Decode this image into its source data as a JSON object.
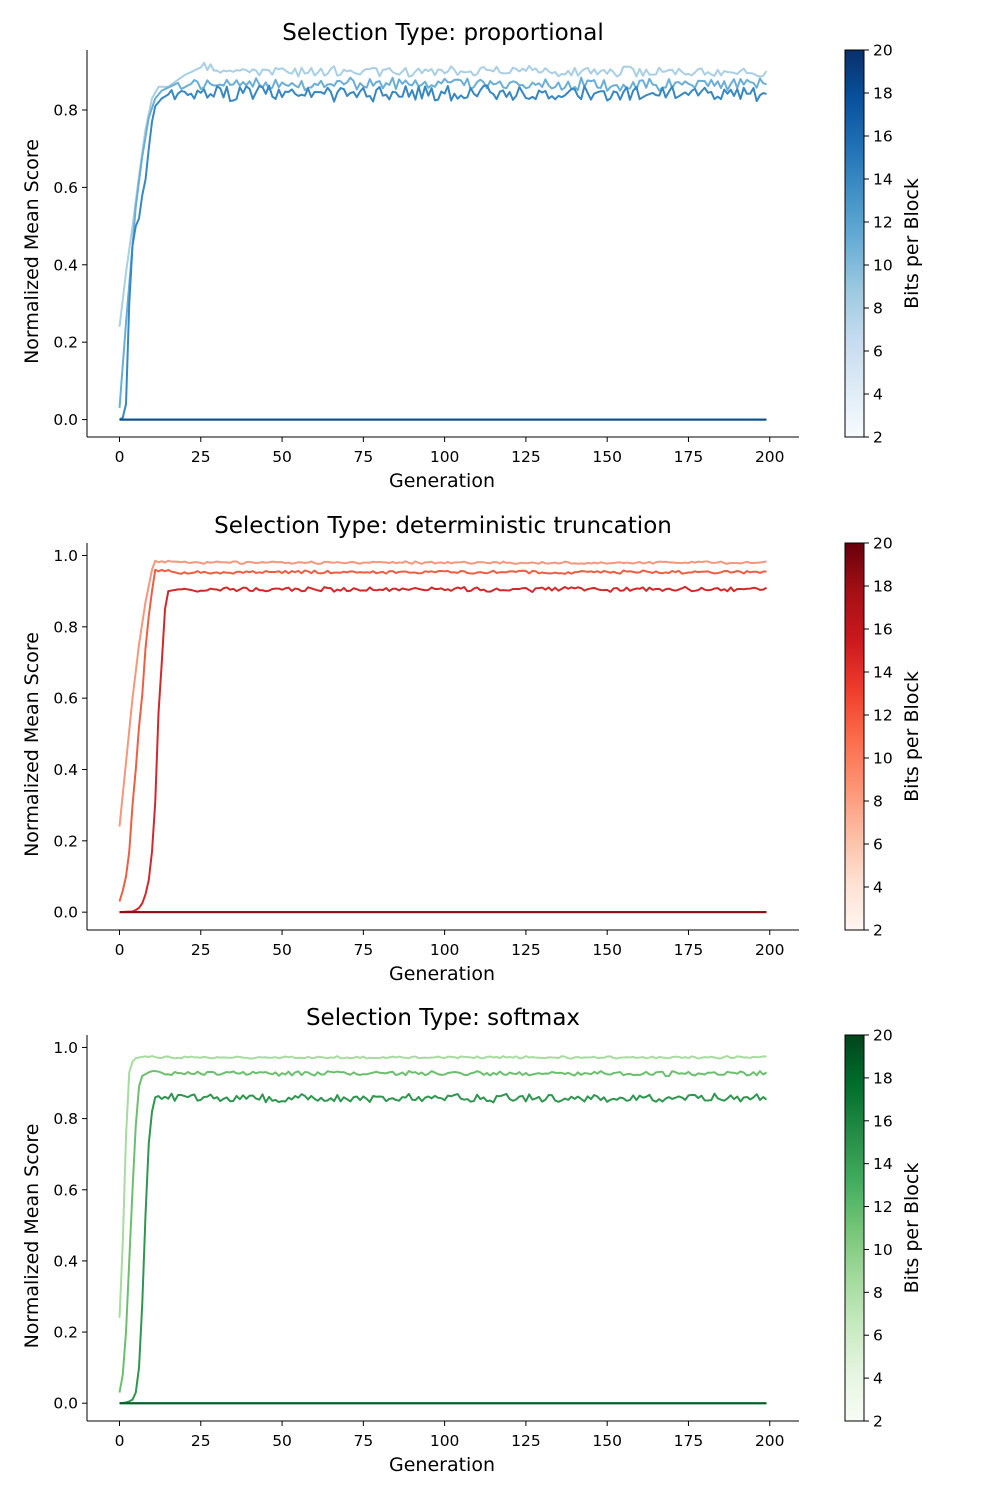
{
  "chart_data": [
    {
      "type": "line",
      "title": "Selection Type: proportional",
      "xlabel": "Generation",
      "ylabel": "Normalized Mean Score",
      "xlim": [
        -10,
        209
      ],
      "ylim": [
        -0.045,
        0.955
      ],
      "xticks": [
        0,
        25,
        50,
        75,
        100,
        125,
        150,
        175,
        200
      ],
      "yticks": [
        0.0,
        0.2,
        0.4,
        0.6,
        0.8
      ],
      "ytick_labels": [
        "0.0",
        "0.2",
        "0.4",
        "0.6",
        "0.8"
      ],
      "colorbar": {
        "label": "Bits per Block",
        "range": [
          2,
          20
        ],
        "ticks": [
          2,
          4,
          6,
          8,
          10,
          12,
          14,
          16,
          18,
          20
        ],
        "cmap": [
          "#f7fbff",
          "#deebf7",
          "#c6dbef",
          "#9ecae1",
          "#6baed6",
          "#4292c6",
          "#2171b5",
          "#08519c",
          "#08306b"
        ]
      },
      "series": [
        {
          "bits": 8,
          "color": "#a9cfe5",
          "start": 0.24,
          "rise": [
            [
              0,
              0.24
            ],
            [
              2,
              0.38
            ],
            [
              4,
              0.5
            ],
            [
              6,
              0.63
            ],
            [
              8,
              0.75
            ],
            [
              10,
              0.83
            ],
            [
              12,
              0.86
            ],
            [
              15,
              0.86
            ],
            [
              20,
              0.89
            ],
            [
              25,
              0.91
            ]
          ],
          "plateau": 0.9,
          "noise": 0.012
        },
        {
          "bits": 10,
          "color": "#6aaed6",
          "start": 0.03,
          "rise": [
            [
              0,
              0.03
            ],
            [
              2,
              0.25
            ],
            [
              3,
              0.35
            ],
            [
              5,
              0.55
            ],
            [
              7,
              0.68
            ],
            [
              9,
              0.78
            ],
            [
              11,
              0.83
            ],
            [
              13,
              0.85
            ],
            [
              18,
              0.87
            ]
          ],
          "plateau": 0.866,
          "noise": 0.014
        },
        {
          "bits": 12,
          "color": "#3787c0",
          "start": 0.0,
          "rise": [
            [
              0,
              0.0
            ],
            [
              1,
              0.005
            ],
            [
              2,
              0.04
            ],
            [
              3,
              0.3
            ],
            [
              4,
              0.45
            ],
            [
              5,
              0.5
            ],
            [
              6,
              0.52
            ],
            [
              7,
              0.58
            ],
            [
              8,
              0.62
            ],
            [
              9,
              0.7
            ],
            [
              10,
              0.77
            ],
            [
              11,
              0.81
            ],
            [
              13,
              0.83
            ],
            [
              15,
              0.84
            ]
          ],
          "plateau": 0.842,
          "noise": 0.018
        },
        {
          "bits": 14,
          "color": "#1562a9",
          "start": 0.0,
          "rise": [
            [
              0,
              0.0
            ]
          ],
          "plateau": 0.0,
          "noise": 0.0
        },
        {
          "bits": 16,
          "color": "#0d4e8f",
          "start": 0.0,
          "rise": [
            [
              0,
              0.0
            ]
          ],
          "plateau": 0.0,
          "noise": 0.0
        }
      ]
    },
    {
      "type": "line",
      "title": "Selection Type: deterministic truncation",
      "xlabel": "Generation",
      "ylabel": "Normalized Mean Score",
      "xlim": [
        -10,
        209
      ],
      "ylim": [
        -0.05,
        1.035
      ],
      "xticks": [
        0,
        25,
        50,
        75,
        100,
        125,
        150,
        175,
        200
      ],
      "yticks": [
        0.0,
        0.2,
        0.4,
        0.6,
        0.8,
        1.0
      ],
      "ytick_labels": [
        "0.0",
        "0.2",
        "0.4",
        "0.6",
        "0.8",
        "1.0"
      ],
      "colorbar": {
        "label": "Bits per Block",
        "range": [
          2,
          20
        ],
        "ticks": [
          2,
          4,
          6,
          8,
          10,
          12,
          14,
          16,
          18,
          20
        ],
        "cmap": [
          "#fff5f0",
          "#fee0d2",
          "#fcbba1",
          "#fc9272",
          "#fb6a4a",
          "#ef3b2c",
          "#cb181d",
          "#a50f15",
          "#67000d"
        ]
      },
      "series": [
        {
          "bits": 8,
          "color": "#f5977b",
          "start": 0.24,
          "rise": [
            [
              0,
              0.24
            ],
            [
              2,
              0.42
            ],
            [
              4,
              0.6
            ],
            [
              6,
              0.75
            ],
            [
              8,
              0.87
            ],
            [
              10,
              0.96
            ],
            [
              11,
              0.985
            ]
          ],
          "plateau": 0.98,
          "noise": 0.003
        },
        {
          "bits": 10,
          "color": "#ec5f43",
          "start": 0.03,
          "rise": [
            [
              0,
              0.03
            ],
            [
              1,
              0.06
            ],
            [
              2,
              0.1
            ],
            [
              3,
              0.17
            ],
            [
              4,
              0.3
            ],
            [
              5,
              0.4
            ],
            [
              6,
              0.52
            ],
            [
              7,
              0.61
            ],
            [
              8,
              0.74
            ],
            [
              9,
              0.83
            ],
            [
              10,
              0.9
            ],
            [
              11,
              0.96
            ]
          ],
          "plateau": 0.953,
          "noise": 0.004
        },
        {
          "bits": 12,
          "color": "#d3282a",
          "start": 0.0,
          "rise": [
            [
              0,
              0.0
            ],
            [
              4,
              0.002
            ],
            [
              5,
              0.006
            ],
            [
              6,
              0.012
            ],
            [
              7,
              0.025
            ],
            [
              8,
              0.05
            ],
            [
              9,
              0.09
            ],
            [
              10,
              0.17
            ],
            [
              11,
              0.31
            ],
            [
              12,
              0.56
            ],
            [
              13,
              0.7
            ],
            [
              14,
              0.85
            ],
            [
              15,
              0.9
            ],
            [
              18,
              0.905
            ]
          ],
          "plateau": 0.905,
          "noise": 0.006
        },
        {
          "bits": 14,
          "color": "#b61419",
          "start": 0.0,
          "rise": [
            [
              0,
              0.0
            ]
          ],
          "plateau": 0.0,
          "noise": 0.0
        },
        {
          "bits": 16,
          "color": "#8e0c12",
          "start": 0.0,
          "rise": [
            [
              0,
              0.0
            ]
          ],
          "plateau": 0.0,
          "noise": 0.0
        }
      ]
    },
    {
      "type": "line",
      "title": "Selection Type: softmax",
      "xlabel": "Generation",
      "ylabel": "Normalized Mean Score",
      "xlim": [
        -10,
        209
      ],
      "ylim": [
        -0.05,
        1.035
      ],
      "xticks": [
        0,
        25,
        50,
        75,
        100,
        125,
        150,
        175,
        200
      ],
      "yticks": [
        0.0,
        0.2,
        0.4,
        0.6,
        0.8,
        1.0
      ],
      "ytick_labels": [
        "0.0",
        "0.2",
        "0.4",
        "0.6",
        "0.8",
        "1.0"
      ],
      "colorbar": {
        "label": "Bits per Block",
        "range": [
          2,
          20
        ],
        "ticks": [
          2,
          4,
          6,
          8,
          10,
          12,
          14,
          16,
          18,
          20
        ],
        "cmap": [
          "#f7fcf5",
          "#e5f5e0",
          "#c7e9c0",
          "#a1d99b",
          "#74c476",
          "#41ab5d",
          "#238b45",
          "#006d2c",
          "#00441b"
        ]
      },
      "series": [
        {
          "bits": 8,
          "color": "#a7dba0",
          "start": 0.24,
          "rise": [
            [
              0,
              0.24
            ],
            [
              1,
              0.45
            ],
            [
              2,
              0.75
            ],
            [
              3,
              0.93
            ],
            [
              4,
              0.96
            ],
            [
              5,
              0.97
            ],
            [
              8,
              0.975
            ]
          ],
          "plateau": 0.972,
          "noise": 0.003
        },
        {
          "bits": 10,
          "color": "#6bbf6e",
          "start": 0.03,
          "rise": [
            [
              0,
              0.03
            ],
            [
              1,
              0.08
            ],
            [
              2,
              0.2
            ],
            [
              3,
              0.4
            ],
            [
              4,
              0.6
            ],
            [
              5,
              0.78
            ],
            [
              6,
              0.89
            ],
            [
              7,
              0.92
            ],
            [
              9,
              0.93
            ]
          ],
          "plateau": 0.927,
          "noise": 0.006
        },
        {
          "bits": 12,
          "color": "#2f9650",
          "start": 0.0,
          "rise": [
            [
              0,
              0.0
            ],
            [
              2,
              0.002
            ],
            [
              3,
              0.005
            ],
            [
              4,
              0.01
            ],
            [
              5,
              0.03
            ],
            [
              6,
              0.1
            ],
            [
              7,
              0.28
            ],
            [
              8,
              0.53
            ],
            [
              9,
              0.73
            ],
            [
              10,
              0.82
            ],
            [
              11,
              0.86
            ]
          ],
          "plateau": 0.858,
          "noise": 0.01
        },
        {
          "bits": 14,
          "color": "#117a38",
          "start": 0.0,
          "rise": [
            [
              0,
              0.0
            ]
          ],
          "plateau": 0.0,
          "noise": 0.0
        },
        {
          "bits": 16,
          "color": "#00602a",
          "start": 0.0,
          "rise": [
            [
              0,
              0.0
            ]
          ],
          "plateau": 0.0,
          "noise": 0.0
        }
      ]
    }
  ]
}
